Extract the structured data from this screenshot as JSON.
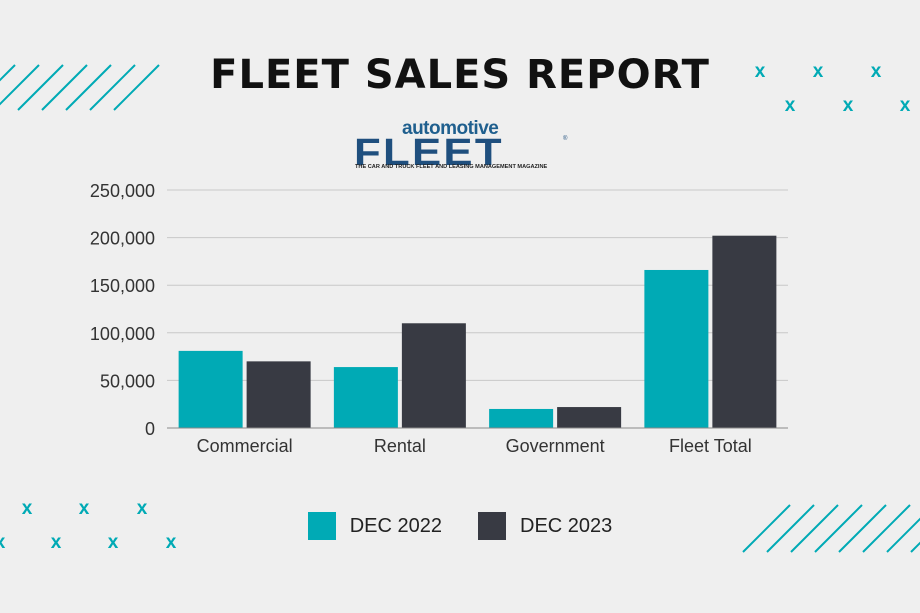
{
  "title": "FLEET SALES REPORT",
  "logo": {
    "small": "automotive",
    "big": "FLEET",
    "reg": "®",
    "tagline": "THE CAR AND TRUCK FLEET AND LEASING MANAGEMENT MAGAZINE"
  },
  "colors": {
    "teal": "#00aab5",
    "dark": "#383a43",
    "background": "#efefef"
  },
  "decor": {
    "marker": "x"
  },
  "chart_data": {
    "type": "bar",
    "categories": [
      "Commercial",
      "Rental",
      "Government",
      "Fleet Total"
    ],
    "series": [
      {
        "name": "DEC 2022",
        "color": "#00aab5",
        "values": [
          81000,
          64000,
          20000,
          166000
        ]
      },
      {
        "name": "DEC 2023",
        "color": "#383a43",
        "values": [
          70000,
          110000,
          22000,
          202000
        ]
      }
    ],
    "yticks": [
      0,
      50000,
      100000,
      150000,
      200000,
      250000
    ],
    "yticklabels": [
      "0",
      "50,000",
      "100,000",
      "150,000",
      "200,000",
      "250,000"
    ],
    "ylim": [
      0,
      250000
    ],
    "grid": true,
    "legend": "bottom-center"
  }
}
